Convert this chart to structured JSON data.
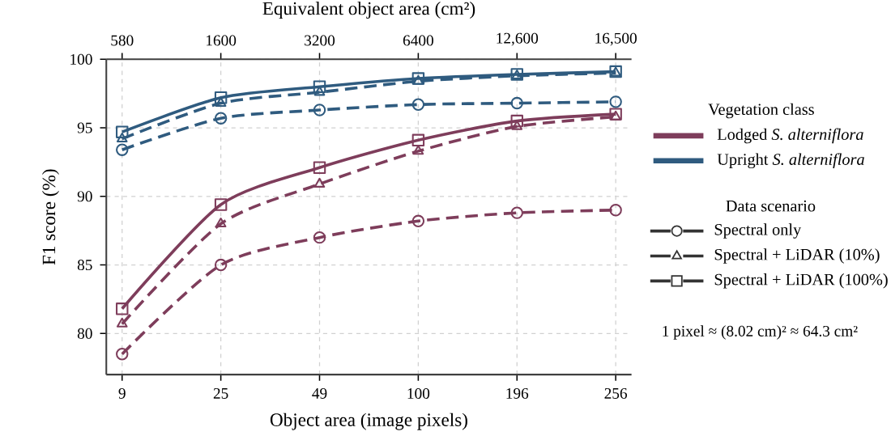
{
  "chart_data": {
    "type": "line",
    "xlabel": "Object area (image pixels)",
    "ylabel": "F1 score (%)",
    "x2label": "Equivalent object area (cm²)",
    "categories": [
      "9",
      "25",
      "49",
      "100",
      "196",
      "256"
    ],
    "ylim": [
      77,
      100
    ],
    "yticks": [
      80,
      85,
      90,
      95,
      100
    ],
    "grid": true,
    "series": [
      {
        "color": "#7e3d5b",
        "marker": "circle",
        "line_style": "dashed",
        "values": [
          78.5,
          85.0,
          87.0,
          88.2,
          88.8,
          89.0
        ]
      },
      {
        "color": "#7e3d5b",
        "marker": "triangle",
        "line_style": "dashed",
        "values": [
          80.7,
          88.0,
          90.9,
          93.3,
          95.1,
          95.8
        ]
      },
      {
        "color": "#7e3d5b",
        "marker": "square",
        "line_style": "solid",
        "values": [
          81.8,
          89.4,
          92.1,
          94.1,
          95.5,
          96.0
        ]
      },
      {
        "color": "#2f5b7f",
        "marker": "circle",
        "line_style": "dashed",
        "values": [
          93.4,
          95.7,
          96.3,
          96.7,
          96.8,
          96.9
        ]
      },
      {
        "color": "#2f5b7f",
        "marker": "triangle",
        "line_style": "dashed",
        "values": [
          94.2,
          96.8,
          97.6,
          98.4,
          98.8,
          99.0
        ]
      },
      {
        "color": "#2f5b7f",
        "marker": "square",
        "line_style": "solid",
        "values": [
          94.7,
          97.2,
          98.0,
          98.6,
          98.9,
          99.1
        ]
      }
    ],
    "annotations": [
      "580",
      "1600",
      "3200",
      "6400",
      "12,600",
      "16,500",
      "Vegetation class",
      "Lodged *S. alterniflora*",
      "Upright *S. alterniflora*",
      "Data scenario",
      "Spectral only",
      "Spectral + LiDAR (10%)",
      "Spectral + LiDAR (100%)",
      "1 pixel ≈ (8.02 cm)² ≈ 64.3 cm²"
    ]
  }
}
